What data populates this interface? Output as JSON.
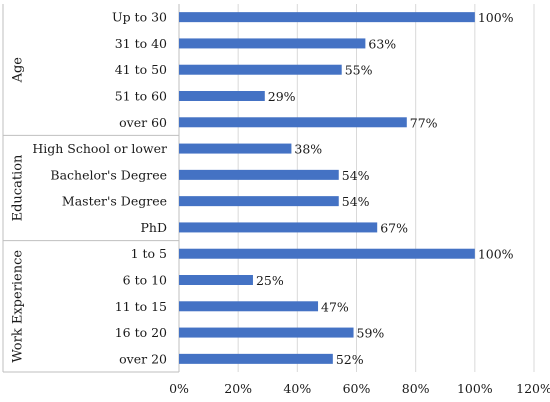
{
  "chart_data": {
    "type": "bar",
    "orientation": "horizontal",
    "xlim": [
      0,
      120
    ],
    "x_ticks": [
      "0%",
      "20%",
      "40%",
      "60%",
      "80%",
      "100%",
      "120%"
    ],
    "x_tick_values": [
      0,
      20,
      40,
      60,
      80,
      100,
      120
    ],
    "grid": true,
    "bar_color": "#4472c4",
    "groups": [
      {
        "name": "Age",
        "items": [
          {
            "label": "Up to 30",
            "value": 100,
            "value_label": "100%"
          },
          {
            "label": "31 to 40",
            "value": 63,
            "value_label": "63%"
          },
          {
            "label": "41 to 50",
            "value": 55,
            "value_label": "55%"
          },
          {
            "label": "51 to 60",
            "value": 29,
            "value_label": "29%"
          },
          {
            "label": "over 60",
            "value": 77,
            "value_label": "77%"
          }
        ]
      },
      {
        "name": "Education",
        "items": [
          {
            "label": "High School or lower",
            "value": 38,
            "value_label": "38%"
          },
          {
            "label": "Bachelor's Degree",
            "value": 54,
            "value_label": "54%"
          },
          {
            "label": "Master's Degree",
            "value": 54,
            "value_label": "54%"
          },
          {
            "label": "PhD",
            "value": 67,
            "value_label": "67%"
          }
        ]
      },
      {
        "name": "Work Experience",
        "items": [
          {
            "label": "1 to 5",
            "value": 100,
            "value_label": "100%"
          },
          {
            "label": "6 to 10",
            "value": 25,
            "value_label": "25%"
          },
          {
            "label": "11 to 15",
            "value": 47,
            "value_label": "47%"
          },
          {
            "label": "16 to 20",
            "value": 59,
            "value_label": "59%"
          },
          {
            "label": "over 20",
            "value": 52,
            "value_label": "52%"
          }
        ]
      }
    ]
  }
}
